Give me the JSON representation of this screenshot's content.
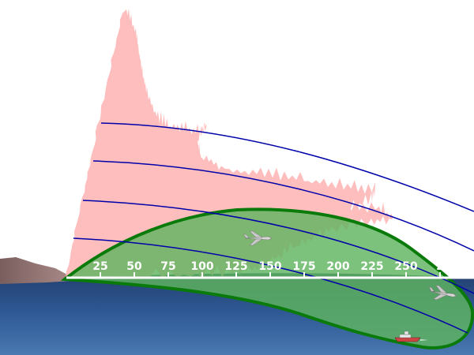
{
  "scale": {
    "labels": [
      "25",
      "50",
      "75",
      "100",
      "125",
      "150",
      "175",
      "200",
      "225",
      "250",
      "2"
    ],
    "color": "#ffffff"
  },
  "colors": {
    "radar_pattern": "#ffb3b3",
    "coverage_fill": "#5fb55f",
    "coverage_edge": "#0a7a0a",
    "range_lines": "#0000aa",
    "sea": "#2b4f8a",
    "land": "#8a6a6a"
  },
  "icons": [
    "aircraft-icon",
    "aircraft-icon",
    "ship-icon"
  ]
}
